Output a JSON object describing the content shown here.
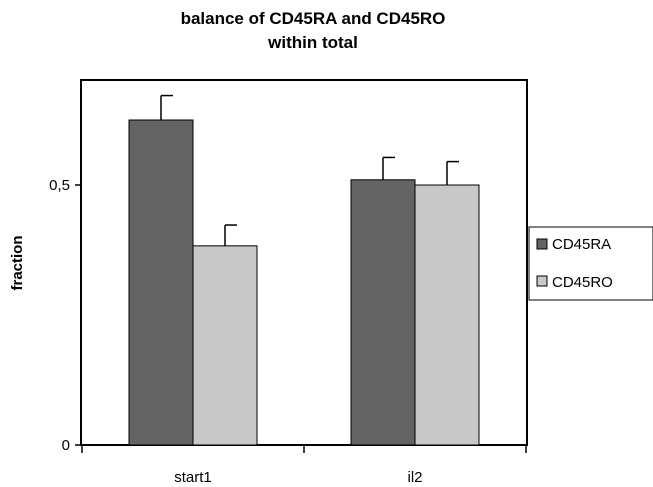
{
  "chart_data": {
    "type": "bar",
    "title": [
      "balance of CD45RA and CD45RO",
      "within total"
    ],
    "xlabel": "",
    "ylabel": "fraction",
    "categories": [
      "start1",
      "il2"
    ],
    "ylim": [
      0,
      0.7
    ],
    "yticks": [
      {
        "value": 0,
        "label": "0"
      },
      {
        "value": 0.5,
        "label": "0,5"
      }
    ],
    "grid": false,
    "legend": "right",
    "series": [
      {
        "name": "CD45RA",
        "color": "#646464",
        "values": [
          0.625,
          0.51
        ],
        "errors": [
          0.047,
          0.043
        ]
      },
      {
        "name": "CD45RO",
        "color": "#c8c8c8",
        "values": [
          0.383,
          0.5
        ],
        "errors": [
          0.04,
          0.045
        ]
      }
    ]
  }
}
